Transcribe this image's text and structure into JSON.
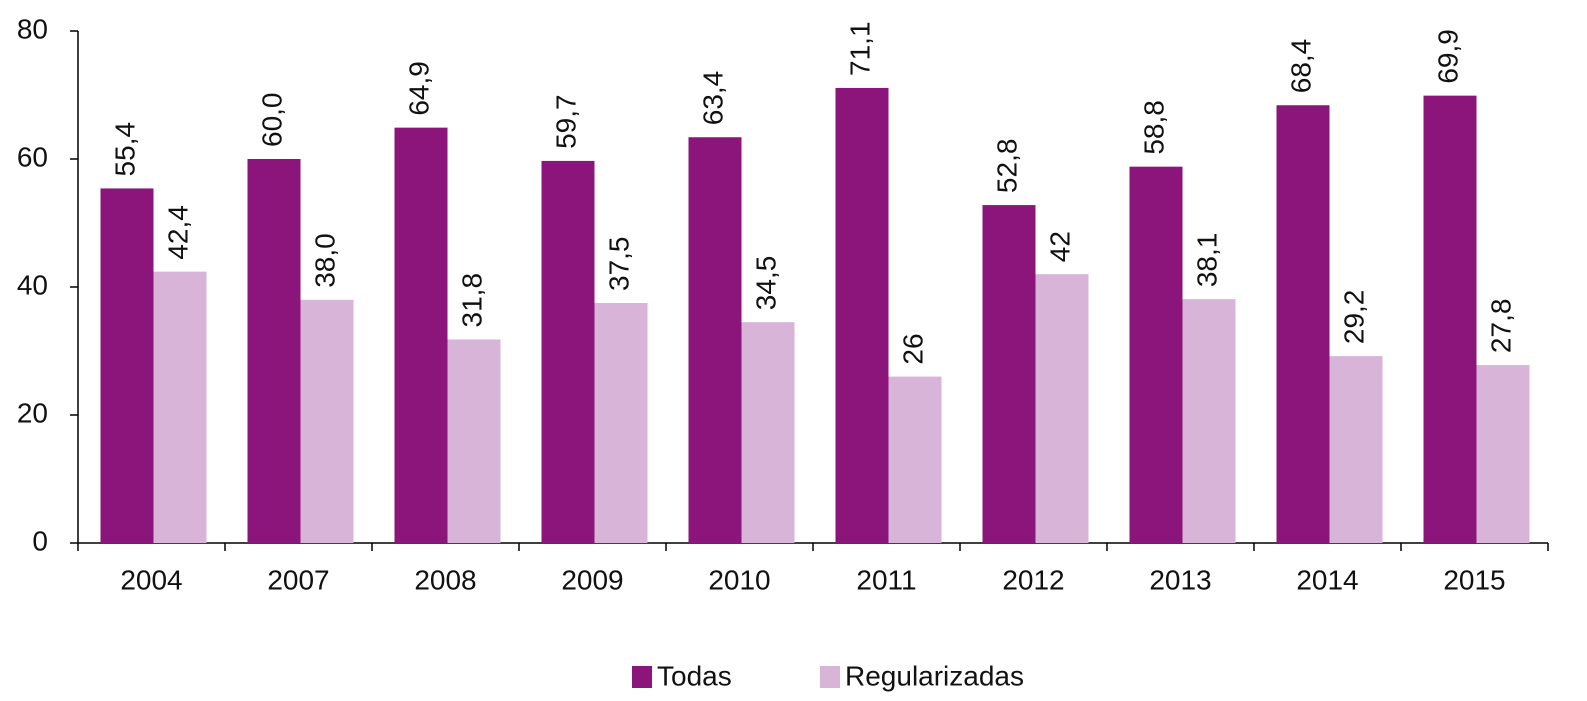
{
  "chart_data": {
    "type": "bar",
    "categories": [
      "2004",
      "2007",
      "2008",
      "2009",
      "2010",
      "2011",
      "2012",
      "2013",
      "2014",
      "2015"
    ],
    "series": [
      {
        "name": "Todas",
        "color": "#8b157b",
        "values": [
          55.4,
          60.0,
          64.9,
          59.7,
          63.4,
          71.1,
          52.8,
          58.8,
          68.4,
          69.9
        ],
        "value_labels": [
          "55,4",
          "60,0",
          "64,9",
          "59,7",
          "63,4",
          "71,1",
          "52,8",
          "58,8",
          "68,4",
          "69,9"
        ]
      },
      {
        "name": "Regularizadas",
        "color": "#d7b4d8",
        "values": [
          42.4,
          38.0,
          31.8,
          37.5,
          34.5,
          26,
          42,
          38.1,
          29.2,
          27.8
        ],
        "value_labels": [
          "42,4",
          "38,0",
          "31,8",
          "37,5",
          "34,5",
          "26",
          "42",
          "38,1",
          "29,2",
          "27,8"
        ]
      }
    ],
    "ylim": [
      0,
      80
    ],
    "yticks": [
      0,
      20,
      40,
      60,
      80
    ],
    "grid": false,
    "legend": "bottom"
  }
}
